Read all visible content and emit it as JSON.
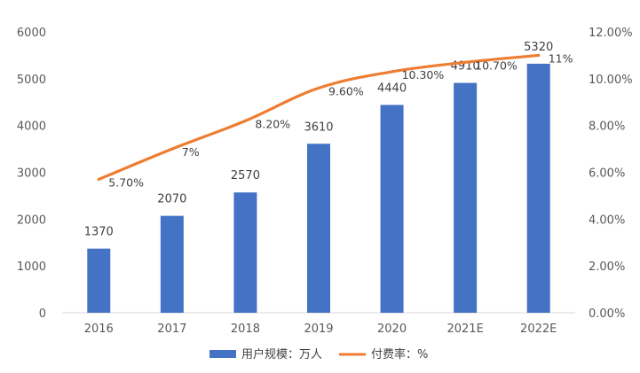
{
  "chart_data": {
    "type": "bar",
    "categories": [
      "2016",
      "2017",
      "2018",
      "2019",
      "2020",
      "2021E",
      "2022E"
    ],
    "series": [
      {
        "name": "用户规模：万人",
        "type": "bar",
        "axis": "left",
        "color": "#4472C4",
        "values": [
          1370,
          2070,
          2570,
          3610,
          4440,
          4910,
          5320
        ],
        "labels": [
          "1370",
          "2070",
          "2570",
          "3610",
          "4440",
          "4910",
          "5320"
        ]
      },
      {
        "name": "付费率：%",
        "type": "line",
        "axis": "right",
        "color": "#ED7D31",
        "values": [
          5.7,
          7.0,
          8.2,
          9.6,
          10.3,
          10.7,
          11.0
        ],
        "labels": [
          "5.70%",
          "7%",
          "8.20%",
          "9.60%",
          "10.30%",
          "10.70%",
          "11%"
        ]
      }
    ],
    "ylim": [
      0,
      6000
    ],
    "y_ticks": [
      "0",
      "1000",
      "2000",
      "3000",
      "4000",
      "5000",
      "6000"
    ],
    "y2lim": [
      0,
      12
    ],
    "y2_ticks": [
      "0.00%",
      "2.00%",
      "4.00%",
      "6.00%",
      "8.00%",
      "10.00%",
      "12.00%"
    ],
    "grid": false,
    "legend_position": "bottom"
  }
}
